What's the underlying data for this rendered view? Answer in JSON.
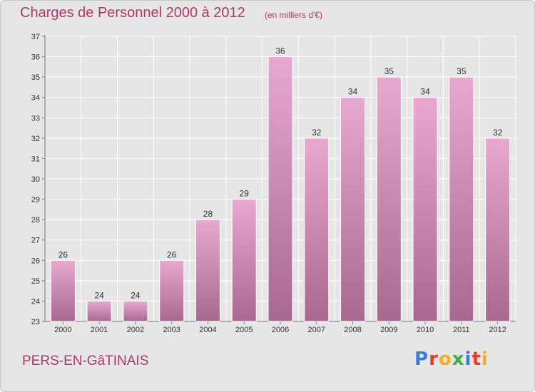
{
  "header": {
    "title": "Charges de Personnel 2000 à 2012",
    "subtitle": "(en milliers d'€)"
  },
  "footer": {
    "town": "PERS-EN-GâTINAIS",
    "logo": "Proxiti"
  },
  "colors": {
    "title": "#b0366d",
    "bar_top": "#e8a8d0",
    "bar_bottom": "#a8688f",
    "background": "#e6e6e6",
    "logo_letters": [
      "#3a7bd5",
      "#e0402a",
      "#f0b020",
      "#3fae49",
      "#3a7bd5",
      "#e0402a",
      "#f0b020"
    ]
  },
  "chart_data": {
    "type": "bar",
    "categories": [
      "2000",
      "2001",
      "2002",
      "2003",
      "2004",
      "2005",
      "2006",
      "2007",
      "2008",
      "2009",
      "2010",
      "2011",
      "2012"
    ],
    "values": [
      26,
      24,
      24,
      26,
      28,
      29,
      36,
      32,
      34,
      35,
      34,
      35,
      32
    ],
    "ylim": [
      23,
      37
    ],
    "yticks": [
      23,
      24,
      25,
      26,
      27,
      28,
      29,
      30,
      31,
      32,
      33,
      34,
      35,
      36,
      37
    ],
    "grid": true,
    "data_labels": true
  }
}
